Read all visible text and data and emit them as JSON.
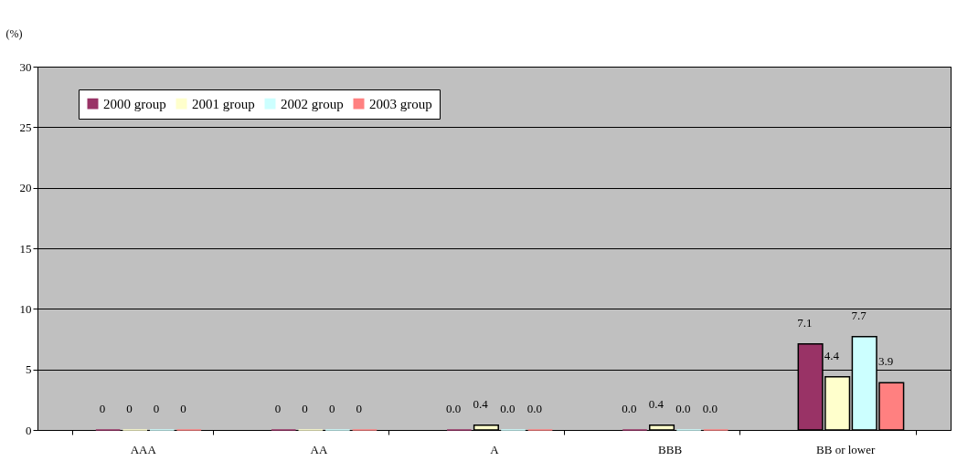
{
  "chart_data": {
    "type": "bar",
    "ylabel": "(%)",
    "categories": [
      "AAA",
      "AA",
      "A",
      "BBB",
      "BB or lower"
    ],
    "series": [
      {
        "name": "2000 group",
        "color": "#993366",
        "values": [
          0,
          0,
          0,
          0,
          7.1
        ],
        "value_labels": [
          "0",
          "0",
          "0.0",
          "0.0",
          "7.1"
        ]
      },
      {
        "name": "2001 group",
        "color": "#ffffcc",
        "values": [
          0,
          0,
          0.4,
          0.4,
          4.4
        ],
        "value_labels": [
          "0",
          "0",
          "0.4",
          "0.4",
          "4.4"
        ]
      },
      {
        "name": "2002 group",
        "color": "#ccffff",
        "values": [
          0,
          0,
          0,
          0,
          7.7
        ],
        "value_labels": [
          "0",
          "0",
          "0.0",
          "0.0",
          "7.7"
        ]
      },
      {
        "name": "2003 group",
        "color": "#ff8080",
        "values": [
          0,
          0,
          0,
          0,
          3.9
        ],
        "value_labels": [
          "0",
          "0",
          "0.0",
          "0.0",
          "3.9"
        ]
      }
    ],
    "ylim": [
      0,
      30
    ],
    "yticks": [
      0,
      5,
      10,
      15,
      20,
      25,
      30
    ],
    "grid": "y",
    "legend": "top left"
  }
}
